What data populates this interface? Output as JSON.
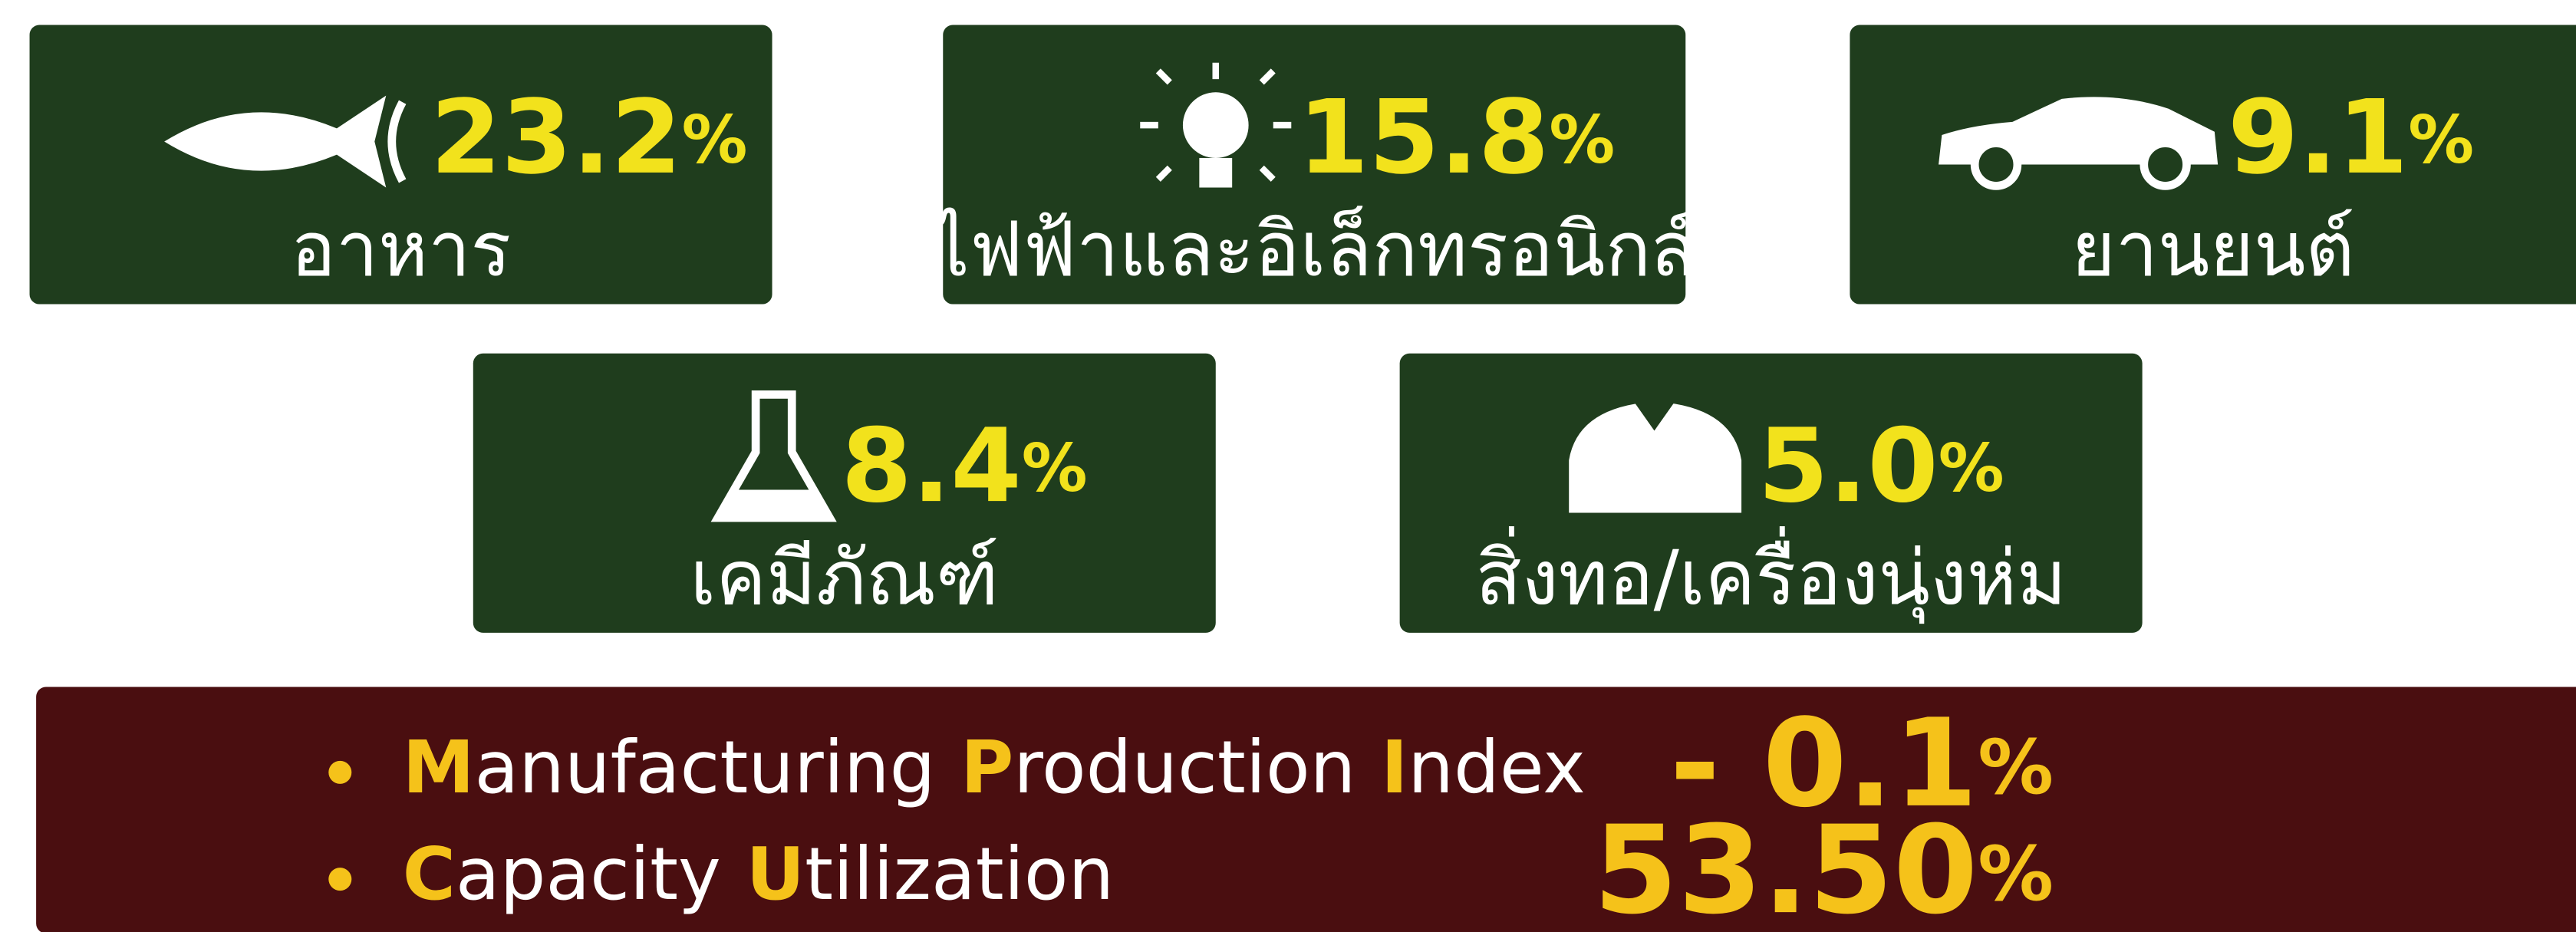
{
  "cards": [
    {
      "value": "23.2",
      "unit": "%",
      "label": "อาหาร"
    },
    {
      "value": "15.8",
      "unit": "%",
      "label": "ไฟฟ้าและอิเล็กทรอนิกส์"
    },
    {
      "value": "9.1",
      "unit": "%",
      "label": "ยานยนต์"
    },
    {
      "value": "8.4",
      "unit": "%",
      "label": "เคมีภัณฑ์"
    },
    {
      "value": "5.0",
      "unit": "%",
      "label": "สิ่งทอ/เครื่องนุ่งห่ม"
    }
  ],
  "indicators": [
    {
      "label": "Manufacturing Production Index",
      "value": "- 0.1",
      "unit": "%"
    },
    {
      "label": "Capacity Utilization",
      "value": "53.50",
      "unit": "%"
    }
  ]
}
